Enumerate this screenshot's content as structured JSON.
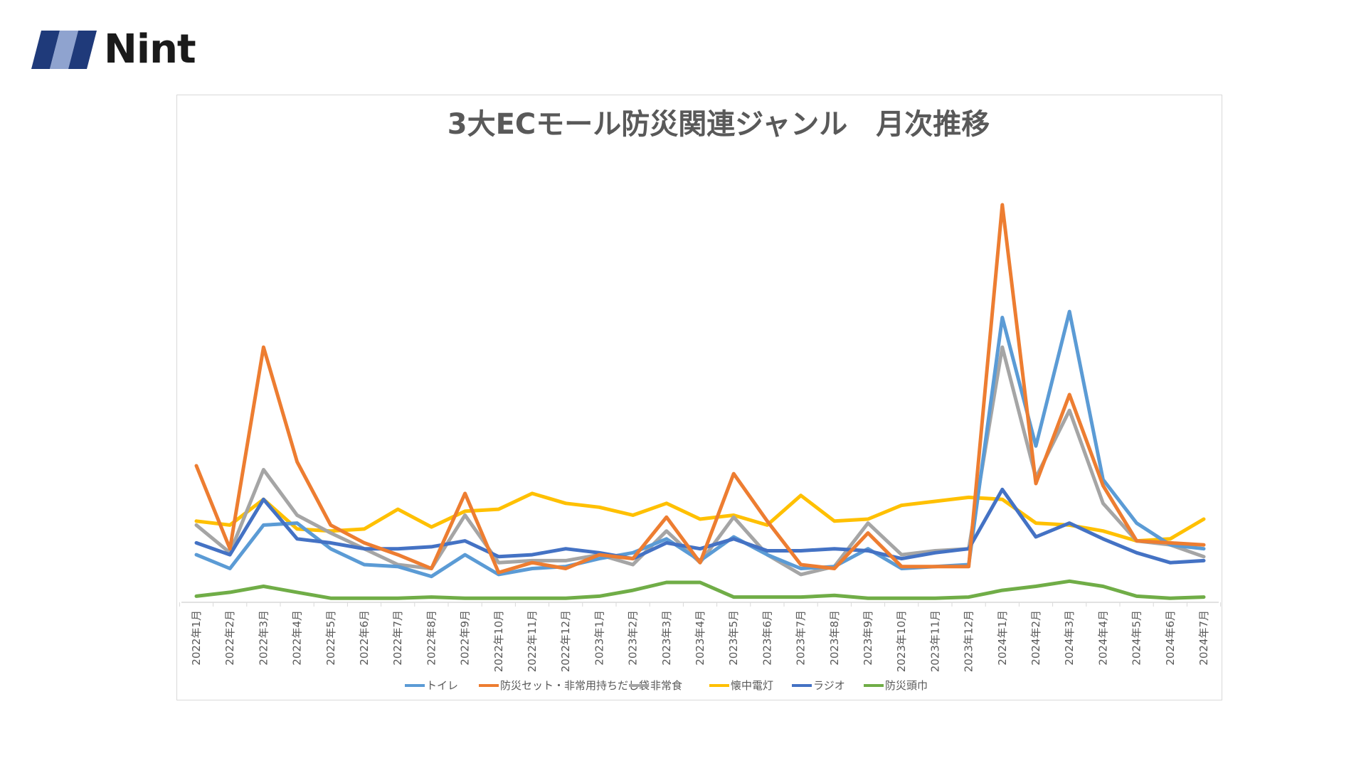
{
  "brand": {
    "name": "Nint",
    "colors": {
      "dark": "#1f3a7a",
      "light": "#8fa3cf"
    }
  },
  "chart_data": {
    "type": "line",
    "title": "3大ECモール防災関連ジャンル　月次推移",
    "xlabel": "",
    "ylabel": "",
    "ylim": [
      0,
      100
    ],
    "grid": false,
    "legend_position": "bottom",
    "categories": [
      "2022年1月",
      "2022年2月",
      "2022年3月",
      "2022年4月",
      "2022年5月",
      "2022年6月",
      "2022年7月",
      "2022年8月",
      "2022年9月",
      "2022年10月",
      "2022年11月",
      "2022年12月",
      "2023年1月",
      "2023年2月",
      "2023年3月",
      "2023年4月",
      "2023年5月",
      "2023年6月",
      "2023年7月",
      "2023年8月",
      "2023年9月",
      "2023年10月",
      "2023年11月",
      "2023年12月",
      "2024年1月",
      "2024年2月",
      "2024年3月",
      "2024年4月",
      "2024年5月",
      "2024年6月",
      "2024年7月"
    ],
    "series": [
      {
        "name": "トイレ",
        "color": "#5b9bd5",
        "values": [
          11.5,
          8.0,
          19.0,
          19.5,
          13.0,
          9.0,
          8.5,
          6.0,
          11.5,
          6.5,
          8.0,
          8.5,
          10.5,
          12.0,
          15.5,
          10.0,
          16.0,
          11.5,
          8.0,
          8.5,
          13.0,
          8.0,
          8.5,
          9.0,
          71.5,
          39.0,
          73.0,
          30.5,
          19.5,
          14.0,
          13.0
        ]
      },
      {
        "name": "防災セット・非常用持ちだし袋",
        "color": "#ed7d31",
        "values": [
          34.0,
          13.0,
          64.0,
          35.0,
          19.0,
          14.5,
          11.5,
          8.0,
          27.0,
          7.0,
          9.5,
          8.0,
          11.5,
          10.5,
          21.0,
          9.5,
          32.0,
          20.0,
          9.0,
          8.0,
          17.0,
          8.5,
          8.5,
          8.5,
          100.0,
          29.5,
          52.0,
          29.0,
          15.0,
          14.5,
          14.0
        ]
      },
      {
        "name": "非常食",
        "color": "#a5a5a5",
        "values": [
          19.0,
          12.0,
          33.0,
          21.5,
          17.0,
          13.0,
          9.0,
          8.0,
          21.5,
          9.5,
          10.0,
          10.0,
          11.5,
          9.0,
          17.5,
          9.5,
          21.0,
          11.5,
          6.5,
          8.5,
          19.5,
          11.5,
          12.5,
          13.0,
          64.0,
          31.0,
          48.0,
          24.5,
          15.0,
          14.0,
          11.0
        ]
      },
      {
        "name": "懐中電灯",
        "color": "#ffc000",
        "values": [
          20.0,
          19.0,
          25.5,
          18.0,
          17.5,
          18.0,
          23.0,
          18.5,
          22.5,
          23.0,
          27.0,
          24.5,
          23.5,
          21.5,
          24.5,
          20.5,
          21.5,
          19.0,
          26.5,
          20.0,
          20.5,
          24.0,
          25.0,
          26.0,
          25.5,
          19.5,
          19.0,
          17.5,
          15.0,
          15.5,
          20.5
        ]
      },
      {
        "name": "ラジオ",
        "color": "#4472c4",
        "values": [
          14.5,
          11.5,
          25.5,
          15.5,
          14.5,
          13.0,
          13.0,
          13.5,
          15.0,
          11.0,
          11.5,
          13.0,
          12.0,
          10.5,
          14.5,
          13.0,
          15.5,
          12.5,
          12.5,
          13.0,
          12.5,
          10.5,
          12.0,
          13.0,
          28.0,
          16.0,
          19.5,
          15.5,
          12.0,
          9.5,
          10.0
        ]
      },
      {
        "name": "防災頭巾",
        "color": "#70ad47",
        "values": [
          1.0,
          2.0,
          3.5,
          2.0,
          0.5,
          0.5,
          0.5,
          0.8,
          0.5,
          0.5,
          0.5,
          0.5,
          1.0,
          2.5,
          4.5,
          4.5,
          0.8,
          0.8,
          0.8,
          1.2,
          0.5,
          0.5,
          0.5,
          0.8,
          2.5,
          3.5,
          4.8,
          3.5,
          1.0,
          0.5,
          0.8
        ]
      }
    ]
  }
}
